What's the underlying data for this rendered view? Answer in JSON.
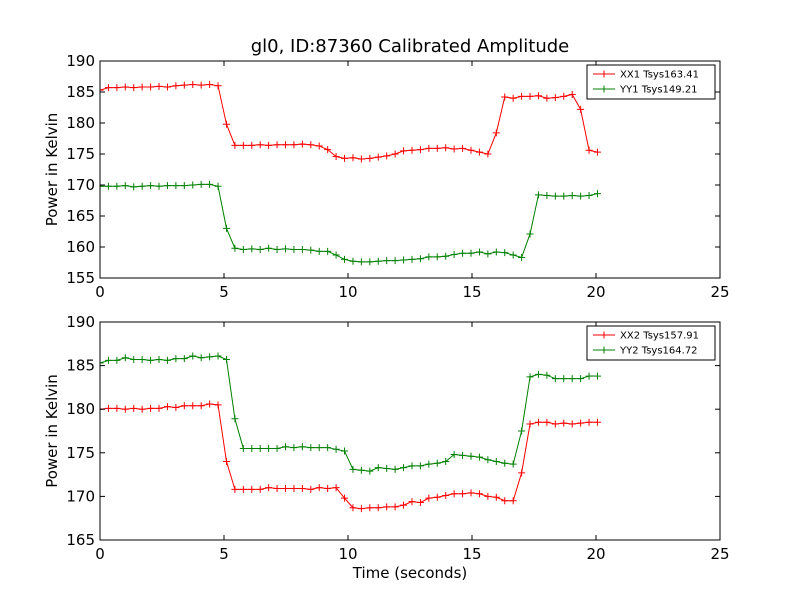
{
  "figure": {
    "title": "gl0, ID:87360 Calibrated Amplitude",
    "xlabel": "Time (seconds)"
  },
  "chart_data": [
    {
      "type": "line",
      "title": "gl0, ID:87360 Calibrated Amplitude",
      "xlabel": "",
      "ylabel": "Power in Kelvin",
      "xlim": [
        0,
        25
      ],
      "ylim": [
        155,
        190
      ],
      "xticks": [
        0,
        5,
        10,
        15,
        20,
        25
      ],
      "yticks": [
        155,
        160,
        165,
        170,
        175,
        180,
        185,
        190
      ],
      "grid": false,
      "legend_position": "top-right",
      "series": [
        {
          "name": "XX1 Tsys163.41",
          "color": "#ff0000",
          "marker": "plus",
          "x": [
            0.0,
            0.34,
            0.68,
            1.02,
            1.36,
            1.7,
            2.04,
            2.38,
            2.72,
            3.06,
            3.4,
            3.74,
            4.08,
            4.42,
            4.76,
            5.1,
            5.44,
            5.78,
            6.12,
            6.46,
            6.8,
            7.14,
            7.48,
            7.82,
            8.16,
            8.5,
            8.84,
            9.18,
            9.52,
            9.86,
            10.2,
            10.54,
            10.88,
            11.22,
            11.56,
            11.9,
            12.24,
            12.58,
            12.92,
            13.26,
            13.6,
            13.94,
            14.28,
            14.62,
            14.96,
            15.3,
            15.64,
            15.98,
            16.32,
            16.66,
            17.0,
            17.34,
            17.68,
            18.02,
            18.36,
            18.7,
            19.04,
            19.38,
            19.72,
            20.06
          ],
          "y": [
            185.3,
            185.7,
            185.7,
            185.8,
            185.7,
            185.8,
            185.8,
            185.9,
            185.8,
            186.0,
            186.1,
            186.2,
            186.1,
            186.2,
            186.0,
            179.8,
            176.4,
            176.4,
            176.4,
            176.5,
            176.4,
            176.5,
            176.5,
            176.5,
            176.6,
            176.5,
            176.3,
            175.7,
            174.6,
            174.3,
            174.4,
            174.2,
            174.3,
            174.5,
            174.7,
            175.0,
            175.5,
            175.6,
            175.7,
            175.9,
            175.9,
            176.0,
            175.8,
            175.9,
            175.6,
            175.3,
            175.0,
            178.4,
            184.2,
            184.0,
            184.3,
            184.3,
            184.4,
            184.0,
            184.1,
            184.3,
            184.6,
            182.2,
            175.6,
            175.3
          ],
          "x_note": "",
          "y_values_alt": []
        },
        {
          "name": "YY1 Tsys149.21",
          "color": "#008000",
          "marker": "plus",
          "x": [
            0.0,
            0.34,
            0.68,
            1.02,
            1.36,
            1.7,
            2.04,
            2.38,
            2.72,
            3.06,
            3.4,
            3.74,
            4.08,
            4.42,
            4.76,
            5.1,
            5.44,
            5.78,
            6.12,
            6.46,
            6.8,
            7.14,
            7.48,
            7.82,
            8.16,
            8.5,
            8.84,
            9.18,
            9.52,
            9.86,
            10.2,
            10.54,
            10.88,
            11.22,
            11.56,
            11.9,
            12.24,
            12.58,
            12.92,
            13.26,
            13.6,
            13.94,
            14.28,
            14.62,
            14.96,
            15.3,
            15.64,
            15.98,
            16.32,
            16.66,
            17.0,
            17.34,
            17.68,
            18.02,
            18.36,
            18.7,
            19.04,
            19.38,
            19.72,
            20.06
          ],
          "y": [
            169.8,
            169.8,
            169.8,
            169.9,
            169.7,
            169.8,
            169.9,
            169.8,
            169.9,
            169.9,
            169.9,
            170.0,
            170.1,
            170.1,
            169.8,
            163.0,
            159.8,
            159.6,
            159.7,
            159.6,
            159.8,
            159.6,
            159.7,
            159.6,
            159.6,
            159.5,
            159.3,
            159.3,
            158.7,
            158.0,
            157.7,
            157.6,
            157.6,
            157.7,
            157.8,
            157.8,
            157.9,
            158.0,
            158.1,
            158.4,
            158.4,
            158.5,
            158.8,
            159.0,
            159.0,
            159.2,
            158.9,
            159.2,
            159.1,
            158.7,
            158.3,
            162.1,
            168.4,
            168.3,
            168.2,
            168.2,
            168.3,
            168.2,
            168.3,
            168.6
          ]
        }
      ]
    },
    {
      "type": "line",
      "title": "",
      "xlabel": "Time (seconds)",
      "ylabel": "Power in Kelvin",
      "xlim": [
        0,
        25
      ],
      "ylim": [
        165,
        190
      ],
      "xticks": [
        0,
        5,
        10,
        15,
        20,
        25
      ],
      "yticks": [
        165,
        170,
        175,
        180,
        185,
        190
      ],
      "grid": false,
      "legend_position": "top-right",
      "series": [
        {
          "name": "XX2 Tsys157.91",
          "color": "#ff0000",
          "marker": "plus",
          "x": [
            0.0,
            0.34,
            0.68,
            1.02,
            1.36,
            1.7,
            2.04,
            2.38,
            2.72,
            3.06,
            3.4,
            3.74,
            4.08,
            4.42,
            4.76,
            5.1,
            5.44,
            5.78,
            6.12,
            6.46,
            6.8,
            7.14,
            7.48,
            7.82,
            8.16,
            8.5,
            8.84,
            9.18,
            9.52,
            9.86,
            10.2,
            10.54,
            10.88,
            11.22,
            11.56,
            11.9,
            12.24,
            12.58,
            12.92,
            13.26,
            13.6,
            13.94,
            14.28,
            14.62,
            14.96,
            15.3,
            15.64,
            15.98,
            16.32,
            16.66,
            17.0,
            17.34,
            17.68,
            18.02,
            18.36,
            18.7,
            19.04,
            19.38,
            19.72,
            20.06
          ],
          "y": [
            180.0,
            180.1,
            180.1,
            180.0,
            180.1,
            180.0,
            180.1,
            180.1,
            180.3,
            180.2,
            180.4,
            180.4,
            180.4,
            180.6,
            180.5,
            174.0,
            170.8,
            170.8,
            170.8,
            170.8,
            171.0,
            170.9,
            170.9,
            170.9,
            170.9,
            170.8,
            171.0,
            170.9,
            171.0,
            169.8,
            168.7,
            168.6,
            168.7,
            168.7,
            168.8,
            168.8,
            169.0,
            169.4,
            169.3,
            169.8,
            169.9,
            170.1,
            170.3,
            170.3,
            170.4,
            170.3,
            170.0,
            169.9,
            169.5,
            169.5,
            172.7,
            178.3,
            178.5,
            178.5,
            178.3,
            178.4,
            178.3,
            178.4,
            178.5,
            178.5
          ]
        },
        {
          "name": "YY2 Tsys164.72",
          "color": "#008000",
          "marker": "plus",
          "x": [
            0.0,
            0.34,
            0.68,
            1.02,
            1.36,
            1.7,
            2.04,
            2.38,
            2.72,
            3.06,
            3.4,
            3.74,
            4.08,
            4.42,
            4.76,
            5.1,
            5.44,
            5.78,
            6.12,
            6.46,
            6.8,
            7.14,
            7.48,
            7.82,
            8.16,
            8.5,
            8.84,
            9.18,
            9.52,
            9.86,
            10.2,
            10.54,
            10.88,
            11.22,
            11.56,
            11.9,
            12.24,
            12.58,
            12.92,
            13.26,
            13.6,
            13.94,
            14.28,
            14.62,
            14.96,
            15.3,
            15.64,
            15.98,
            16.32,
            16.66,
            17.0,
            17.34,
            17.68,
            18.02,
            18.36,
            18.7,
            19.04,
            19.38,
            19.72,
            20.06
          ],
          "y": [
            185.3,
            185.6,
            185.6,
            185.9,
            185.7,
            185.7,
            185.6,
            185.7,
            185.6,
            185.8,
            185.8,
            186.1,
            185.9,
            186.0,
            186.1,
            185.7,
            178.9,
            175.5,
            175.5,
            175.5,
            175.5,
            175.5,
            175.7,
            175.6,
            175.7,
            175.6,
            175.6,
            175.6,
            175.4,
            175.2,
            173.1,
            173.0,
            172.9,
            173.3,
            173.2,
            173.1,
            173.3,
            173.5,
            173.5,
            173.7,
            173.8,
            174.0,
            174.8,
            174.7,
            174.6,
            174.5,
            174.2,
            174.0,
            173.8,
            173.7,
            177.5,
            183.7,
            184.0,
            183.9,
            183.5,
            183.5,
            183.5,
            183.5,
            183.8,
            183.8
          ]
        }
      ]
    }
  ]
}
